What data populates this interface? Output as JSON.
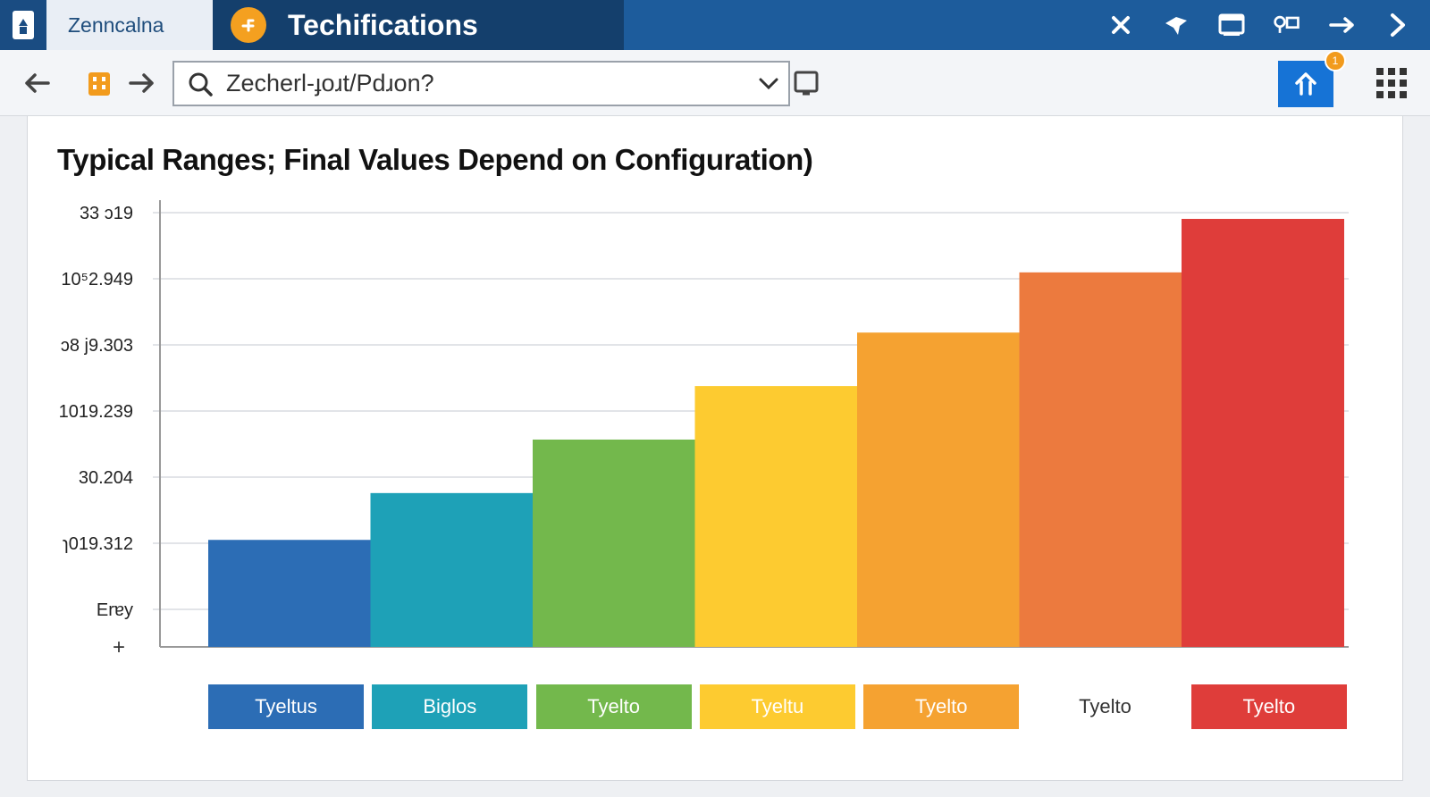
{
  "window": {
    "active_tab_label": "Zenncalna",
    "second_tab_title": "Techifications",
    "controls": [
      "close-icon",
      "pin-icon",
      "window-icon",
      "share-icon",
      "forward-arrow-icon",
      "chevron-right-icon"
    ]
  },
  "toolbar": {
    "address_text": "Zecherl-ɟoɹt/Pdɹon?",
    "home_badge": "1"
  },
  "colors": {
    "titlebar": "#1d5c9c",
    "accent_blue": "#1673d6",
    "bar_1": "#2c6db5",
    "bar_2": "#1ea1b7",
    "bar_3": "#73b84c",
    "bar_4": "#fdcb30",
    "bar_5": "#f5a231",
    "bar_6": "#ec7a3e",
    "bar_7": "#df3d3a"
  },
  "chart_data": {
    "type": "bar",
    "title": "Typical Ranges; Final Values Depend on Configuration)",
    "y_tick_labels": [
      "33 ɔ19",
      "10⁵2.949",
      "ɔ8 j9.303",
      "1019.239",
      "30.204",
      "ɿ019.312",
      "Erɐy"
    ],
    "y_axis_extra_label": "+",
    "ylim": [
      0,
      6.6
    ],
    "categories": [
      "Tyeltus",
      "Biglos",
      "Tyelto",
      "Tyeltu",
      "Tyelto",
      "Tyelto",
      "Tyelto"
    ],
    "values": [
      1.6,
      2.3,
      3.1,
      3.9,
      4.7,
      5.6,
      6.4
    ],
    "legend": [
      {
        "label": "Tyeltus",
        "color": "#2c6db5",
        "text_color": "#ffffff"
      },
      {
        "label": "Biglos",
        "color": "#1ea1b7",
        "text_color": "#ffffff"
      },
      {
        "label": "Tyelto",
        "color": "#73b84c",
        "text_color": "#ffffff"
      },
      {
        "label": "Tyeltu",
        "color": "#fdcb30",
        "text_color": "#ffffff"
      },
      {
        "label": "Tyelto",
        "color": "#f5a231",
        "text_color": "#ffffff"
      },
      {
        "label": "Tyelto",
        "color": "#ffffff",
        "text_color": "#333333"
      },
      {
        "label": "Tyelto",
        "color": "#df3d3a",
        "text_color": "#ffffff"
      }
    ],
    "bar_colors": [
      "#2c6db5",
      "#1ea1b7",
      "#73b84c",
      "#fdcb30",
      "#f5a231",
      "#ec7a3e",
      "#df3d3a"
    ],
    "grid": true,
    "legend_position": "bottom"
  }
}
